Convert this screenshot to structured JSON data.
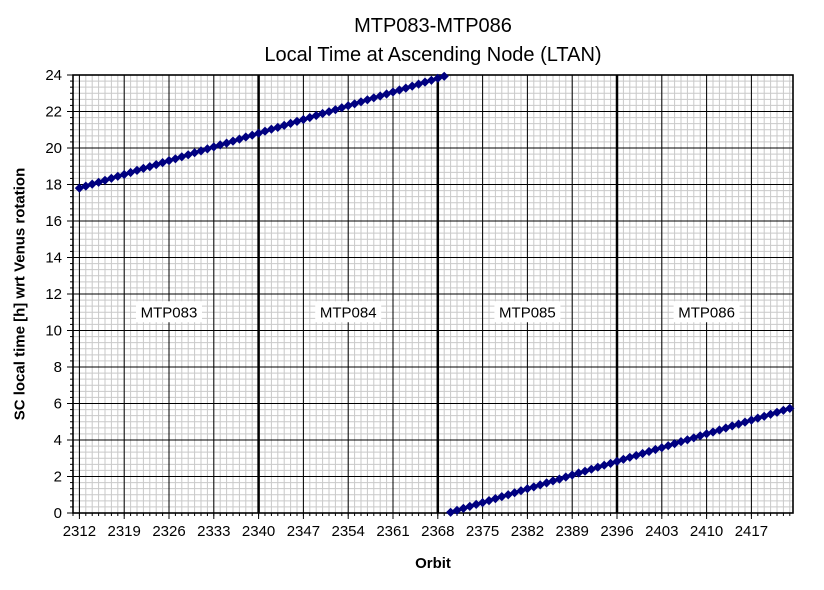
{
  "chart_data": {
    "type": "scatter",
    "title": "MTP083-MTP086",
    "subtitle": "Local Time at Ascending Node (LTAN)",
    "xlabel": "Orbit",
    "ylabel": "SC local time [h] wrt Venus rotation",
    "xlim": [
      2311,
      2423.5
    ],
    "ylim": [
      0,
      24
    ],
    "x_major_ticks": [
      2312,
      2319,
      2326,
      2333,
      2340,
      2347,
      2354,
      2361,
      2368,
      2375,
      2382,
      2389,
      2396,
      2403,
      2410,
      2417
    ],
    "x_minor_step": 1,
    "y_major_ticks": [
      0,
      2,
      4,
      6,
      8,
      10,
      12,
      14,
      16,
      18,
      20,
      22,
      24
    ],
    "y_minor_step": 0.3333,
    "grid": {
      "minor_color": "#c9c9c9",
      "major_color": "#000000"
    },
    "marker_color": "#000080",
    "mtp_boundaries": [
      2340,
      2368,
      2396
    ],
    "mtp_labels": [
      {
        "label": "MTP083",
        "x": 2326,
        "y": 11.0
      },
      {
        "label": "MTP084",
        "x": 2354,
        "y": 11.0
      },
      {
        "label": "MTP085",
        "x": 2382,
        "y": 11.0
      },
      {
        "label": "MTP086",
        "x": 2410,
        "y": 11.0
      }
    ],
    "series": [
      {
        "name": "LTAN",
        "marker": "diamond",
        "color": "#000080",
        "x_start": 2312,
        "x_step": 1,
        "wrap_at": 24,
        "values": [
          17.8,
          17.91,
          18.02,
          18.12,
          18.23,
          18.34,
          18.45,
          18.55,
          18.66,
          18.77,
          18.88,
          18.98,
          19.09,
          19.2,
          19.31,
          19.41,
          19.52,
          19.63,
          19.74,
          19.84,
          19.95,
          20.06,
          20.17,
          20.27,
          20.38,
          20.49,
          20.6,
          20.7,
          20.81,
          20.92,
          21.03,
          21.13,
          21.24,
          21.35,
          21.46,
          21.56,
          21.67,
          21.78,
          21.89,
          21.99,
          22.1,
          22.21,
          22.32,
          22.42,
          22.53,
          22.64,
          22.75,
          22.85,
          22.96,
          23.07,
          23.18,
          23.28,
          23.39,
          23.5,
          23.61,
          23.71,
          23.82,
          23.93,
          0.04,
          0.14,
          0.25,
          0.36,
          0.47,
          0.57,
          0.68,
          0.79,
          0.9,
          1.0,
          1.11,
          1.22,
          1.33,
          1.43,
          1.54,
          1.65,
          1.76,
          1.86,
          1.97,
          2.08,
          2.19,
          2.29,
          2.4,
          2.51,
          2.62,
          2.72,
          2.83,
          2.94,
          3.05,
          3.15,
          3.26,
          3.37,
          3.48,
          3.58,
          3.69,
          3.8,
          3.91,
          4.01,
          4.12,
          4.23,
          4.34,
          4.44,
          4.55,
          4.66,
          4.77,
          4.87,
          4.98,
          5.09,
          5.2,
          5.3,
          5.41,
          5.52,
          5.63,
          5.73
        ]
      }
    ]
  }
}
